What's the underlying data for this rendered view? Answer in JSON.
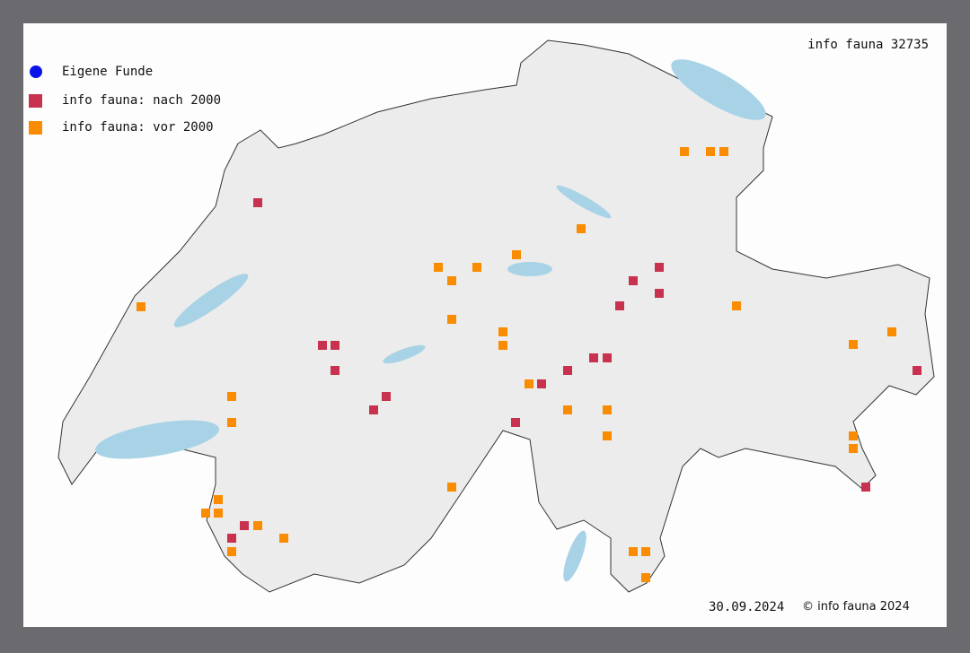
{
  "title": "info fauna 32735",
  "legend": [
    {
      "label": "Eigene Funde",
      "shape": "circle",
      "color": "#0a14e8"
    },
    {
      "label": "info fauna: nach 2000",
      "shape": "square",
      "color": "#c8324f"
    },
    {
      "label": "info fauna: vor 2000",
      "shape": "square",
      "color": "#f98c00"
    }
  ],
  "date": "30.09.2024",
  "copyright": "© info fauna 2024",
  "colors": {
    "land": "#ececec",
    "border": "#333333",
    "water": "#a8d3e6"
  }
}
